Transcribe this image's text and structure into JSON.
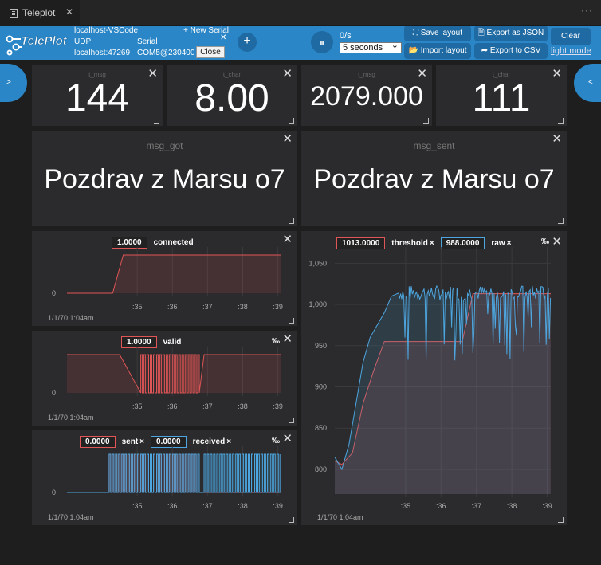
{
  "tab": {
    "title": "Teleplot",
    "close": "✕",
    "more": "···"
  },
  "connection": {
    "name": "localhost-VSCode",
    "new_serial": "+ New Serial",
    "protocol": "UDP",
    "address": "localhost:47269",
    "serial_label": "Serial",
    "serial_port": "COM5@230400",
    "close_label": "Close",
    "close_x": "✕"
  },
  "toolbar": {
    "logo_text": "TelePlot",
    "add": "+",
    "pause": "⏸",
    "rate": "0/s",
    "window_value": "5 seconds",
    "save_layout": "⛶ Save layout",
    "import_layout": "📂 Import layout",
    "export_json": "🗎 Export as JSON",
    "export_csv": "➦ Export to CSV",
    "clear": "Clear",
    "light_mode": "light mode",
    "colors": {
      "bar": "#2a86c6",
      "button": "#1f6aa3"
    }
  },
  "sidebar": {
    "left": ">",
    "right": "<"
  },
  "stats": [
    {
      "title": "t_msg",
      "value": "144"
    },
    {
      "title": "t_char",
      "value": "8.00"
    },
    {
      "title": "t_msg",
      "value": "2079.000"
    },
    {
      "title": "t_char",
      "value": "111"
    }
  ],
  "text_panels": [
    {
      "title": "msg_got",
      "value": "Pozdrav z Marsu o7"
    },
    {
      "title": "msg_sent",
      "value": "Pozdrav z Marsu o7"
    }
  ],
  "charts": {
    "connected": {
      "label": "connected",
      "value": "1.0000",
      "pct": "‰"
    },
    "valid": {
      "label": "valid",
      "value": "1.0000",
      "pct": "‰"
    },
    "sent": {
      "label": "sent",
      "value": "0.0000",
      "label2": "received",
      "value2": "0.0000",
      "x": "×",
      "pct": "‰"
    },
    "big": {
      "label": "threshold",
      "value": "1013.0000",
      "label2": "raw",
      "value2": "988.0000",
      "x": "×",
      "pct": "‰"
    }
  },
  "chart_data": [
    {
      "type": "line",
      "title": "connected",
      "xlabel": "1/1/70 1:04am",
      "x_ticks": [
        ":35",
        ":36",
        ":37",
        ":38",
        ":39"
      ],
      "y_ticks": [
        "0"
      ],
      "series": [
        {
          "name": "connected",
          "color": "#e05555",
          "x": [
            33.0,
            34.3,
            34.6,
            39.1
          ],
          "values": [
            0,
            0,
            1,
            1
          ]
        }
      ],
      "xlim": [
        33.0,
        39.1
      ],
      "ylim": [
        0,
        1
      ]
    },
    {
      "type": "line",
      "title": "valid",
      "xlabel": "1/1/70 1:04am",
      "x_ticks": [
        ":35",
        ":36",
        ":37",
        ":38",
        ":39"
      ],
      "y_ticks": [
        "0"
      ],
      "series": [
        {
          "name": "valid",
          "color": "#e05555",
          "x": [
            33.0,
            34.5,
            35.1,
            35.1,
            36.8,
            36.8,
            36.9,
            39.1
          ],
          "values": [
            1,
            1,
            1,
            0,
            0,
            0,
            1,
            1
          ],
          "noise_ranges": [
            [
              35.1,
              36.8
            ]
          ]
        }
      ],
      "xlim": [
        33.0,
        39.1
      ],
      "ylim": [
        0,
        1
      ]
    },
    {
      "type": "line",
      "title": "sent / received",
      "xlabel": "1/1/70 1:04am",
      "x_ticks": [
        ":35",
        ":36",
        ":37",
        ":38",
        ":39"
      ],
      "y_ticks": [
        "0"
      ],
      "series": [
        {
          "name": "sent",
          "color": "#e05555",
          "x": [
            33.0,
            34.2,
            34.2,
            36.8,
            36.8,
            39.1
          ],
          "values": [
            0,
            0,
            1,
            1,
            0,
            0
          ],
          "noise_ranges": [
            [
              34.2,
              36.8
            ]
          ]
        },
        {
          "name": "received",
          "color": "#4da6df",
          "x": [
            33.0,
            36.8,
            36.8,
            39.1
          ],
          "values": [
            0,
            0,
            1,
            1
          ],
          "noise_ranges": [
            [
              34.2,
              36.8
            ],
            [
              36.9,
              39.1
            ]
          ]
        }
      ],
      "xlim": [
        33.0,
        39.1
      ],
      "ylim": [
        0,
        1
      ]
    },
    {
      "type": "line",
      "title": "threshold / raw",
      "xlabel": "1/1/70 1:04am",
      "x_ticks": [
        ":35",
        ":36",
        ":37",
        ":38",
        ":39"
      ],
      "y_ticks": [
        "800",
        "850",
        "900",
        "950",
        "1,000",
        "1,050"
      ],
      "series": [
        {
          "name": "threshold",
          "color": "#e05555",
          "x": [
            33.0,
            33.2,
            33.5,
            33.8,
            34.1,
            34.4,
            34.5,
            36.6,
            36.9,
            39.1
          ],
          "values": [
            810,
            806,
            820,
            880,
            920,
            955,
            955,
            955,
            1013,
            1013
          ]
        },
        {
          "name": "raw",
          "color": "#4da6df",
          "x": [
            33.0,
            33.2,
            33.4,
            33.6,
            33.8,
            34.0,
            34.2,
            34.4,
            34.6,
            34.8,
            35.0,
            39.1
          ],
          "values": [
            815,
            800,
            830,
            880,
            930,
            960,
            975,
            990,
            1010,
            1018,
            1015,
            988
          ],
          "noise_ranges": [
            [
              34.8,
              39.1
            ]
          ]
        }
      ],
      "xlim": [
        33.0,
        39.1
      ],
      "ylim": [
        770,
        1060
      ]
    }
  ]
}
